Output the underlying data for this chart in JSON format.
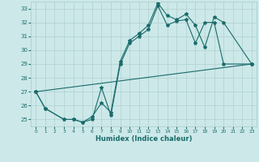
{
  "xlabel": "Humidex (Indice chaleur)",
  "xlim": [
    -0.5,
    23.5
  ],
  "ylim": [
    24.5,
    33.5
  ],
  "yticks": [
    25,
    26,
    27,
    28,
    29,
    30,
    31,
    32,
    33
  ],
  "xticks": [
    0,
    1,
    2,
    3,
    4,
    5,
    6,
    7,
    8,
    9,
    10,
    11,
    12,
    13,
    14,
    15,
    16,
    17,
    18,
    19,
    20,
    21,
    22,
    23
  ],
  "background_color": "#cce8e8",
  "grid_color": "#b0d0d0",
  "line_color": "#1a6b6b",
  "series1_x": [
    0,
    1,
    3,
    4,
    5,
    6,
    7,
    8,
    9,
    10,
    11,
    12,
    13,
    14,
    15,
    16,
    17,
    18,
    19,
    20,
    23
  ],
  "series1_y": [
    27.0,
    25.8,
    25.0,
    25.0,
    24.8,
    25.0,
    27.3,
    25.3,
    29.0,
    30.5,
    31.0,
    31.5,
    33.2,
    31.8,
    32.1,
    32.2,
    30.5,
    32.0,
    32.0,
    29.0,
    29.0
  ],
  "series2_x": [
    0,
    1,
    3,
    4,
    5,
    6,
    7,
    8,
    9,
    10,
    11,
    12,
    13,
    14,
    15,
    16,
    17,
    18,
    19,
    20,
    23
  ],
  "series2_y": [
    27.0,
    25.8,
    25.0,
    25.0,
    24.8,
    25.2,
    26.2,
    25.5,
    29.2,
    30.7,
    31.2,
    31.8,
    33.4,
    32.5,
    32.2,
    32.6,
    31.8,
    30.2,
    32.4,
    32.0,
    29.0
  ],
  "series3_x": [
    0,
    23
  ],
  "series3_y": [
    27.0,
    29.0
  ]
}
